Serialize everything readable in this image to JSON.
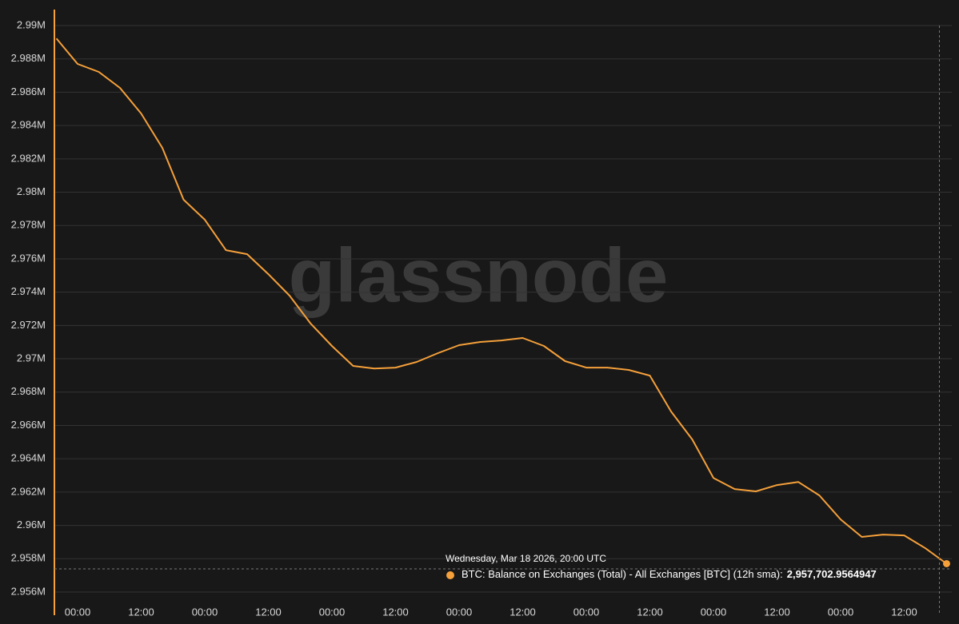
{
  "chart_data": {
    "type": "line",
    "watermark": "glassnode",
    "categories": [
      null,
      "00:00",
      null,
      null,
      "12:00",
      null,
      null,
      "00:00",
      null,
      null,
      "12:00",
      null,
      null,
      "00:00",
      null,
      null,
      "12:00",
      null,
      null,
      "00:00",
      null,
      null,
      "12:00",
      null,
      null,
      "00:00",
      null,
      null,
      "12:00",
      null,
      null,
      "00:00",
      null,
      null,
      "12:00",
      null,
      null,
      "00:00",
      null,
      null,
      "12:00",
      null,
      null
    ],
    "series": [
      {
        "name": "BTC: Balance on Exchanges (Total) - All Exchanges [BTC] (12h sma):",
        "color": "#f5a03a",
        "values": [
          2989230,
          2987700,
          2987220,
          2986260,
          2984720,
          2982660,
          2979550,
          2978350,
          2976520,
          2976280,
          2975080,
          2973790,
          2972110,
          2970770,
          2969570,
          2969420,
          2969470,
          2969810,
          2970340,
          2970820,
          2971010,
          2971100,
          2971250,
          2970770,
          2969860,
          2969470,
          2969470,
          2969330,
          2968990,
          2966840,
          2965160,
          2962850,
          2962180,
          2962040,
          2962420,
          2962610,
          2961800,
          2960360,
          2959310,
          2959450,
          2959400,
          2958630,
          2957702.9564947
        ],
        "value_labels": [
          null,
          null,
          null,
          null,
          null,
          null,
          null,
          null,
          null,
          null,
          null,
          null,
          null,
          null,
          null,
          null,
          null,
          null,
          null,
          null,
          null,
          null,
          null,
          null,
          null,
          null,
          null,
          null,
          null,
          null,
          null,
          null,
          null,
          null,
          null,
          null,
          null,
          null,
          null,
          null,
          null,
          null,
          "2,957,702.9564947"
        ]
      }
    ],
    "tooltip_date": "Wednesday, Mar 18 2026, 20:00 UTC",
    "ylim": [
      2956000,
      2990000
    ],
    "yticks": [
      {
        "value": 2956000,
        "label": "2.956M"
      },
      {
        "value": 2958000,
        "label": "2.958M"
      },
      {
        "value": 2960000,
        "label": "2.96M"
      },
      {
        "value": 2962000,
        "label": "2.962M"
      },
      {
        "value": 2964000,
        "label": "2.964M"
      },
      {
        "value": 2966000,
        "label": "2.966M"
      },
      {
        "value": 2968000,
        "label": "2.968M"
      },
      {
        "value": 2970000,
        "label": "2.97M"
      },
      {
        "value": 2972000,
        "label": "2.972M"
      },
      {
        "value": 2974000,
        "label": "2.974M"
      },
      {
        "value": 2976000,
        "label": "2.976M"
      },
      {
        "value": 2978000,
        "label": "2.978M"
      },
      {
        "value": 2980000,
        "label": "2.98M"
      },
      {
        "value": 2982000,
        "label": "2.982M"
      },
      {
        "value": 2984000,
        "label": "2.984M"
      },
      {
        "value": 2986000,
        "label": "2.986M"
      },
      {
        "value": 2988000,
        "label": "2.988M"
      },
      {
        "value": 2990000,
        "label": "2.99M"
      }
    ],
    "grid": true
  }
}
